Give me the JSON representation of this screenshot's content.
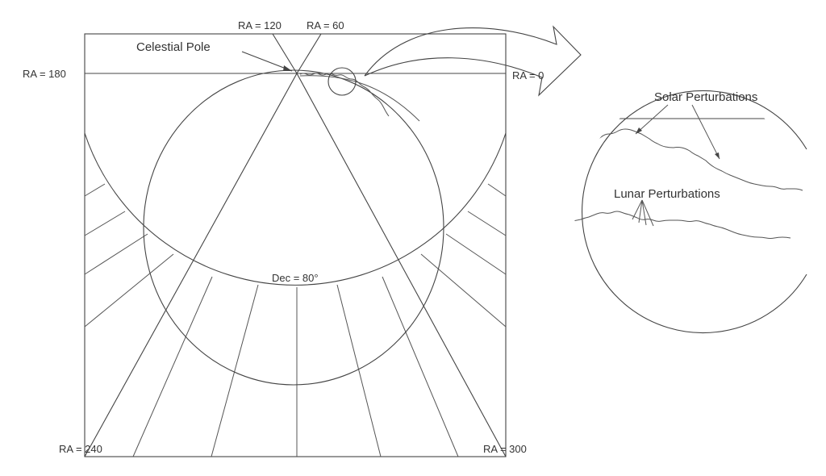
{
  "labels": {
    "ra_120": "RA = 120",
    "ra_60": "RA = 60",
    "ra_180": "RA = 180",
    "ra_0": "RA = 0",
    "ra_240": "RA = 240",
    "ra_300": "RA = 300",
    "celestial_pole": "Celestial Pole",
    "dec_80": "Dec = 80°",
    "solar_perturbations": "Solar Perturbations",
    "lunar_perturbations": "Lunar Perturbations"
  },
  "colors": {
    "line": "#444444",
    "text": "#333333",
    "background": "#ffffff"
  }
}
